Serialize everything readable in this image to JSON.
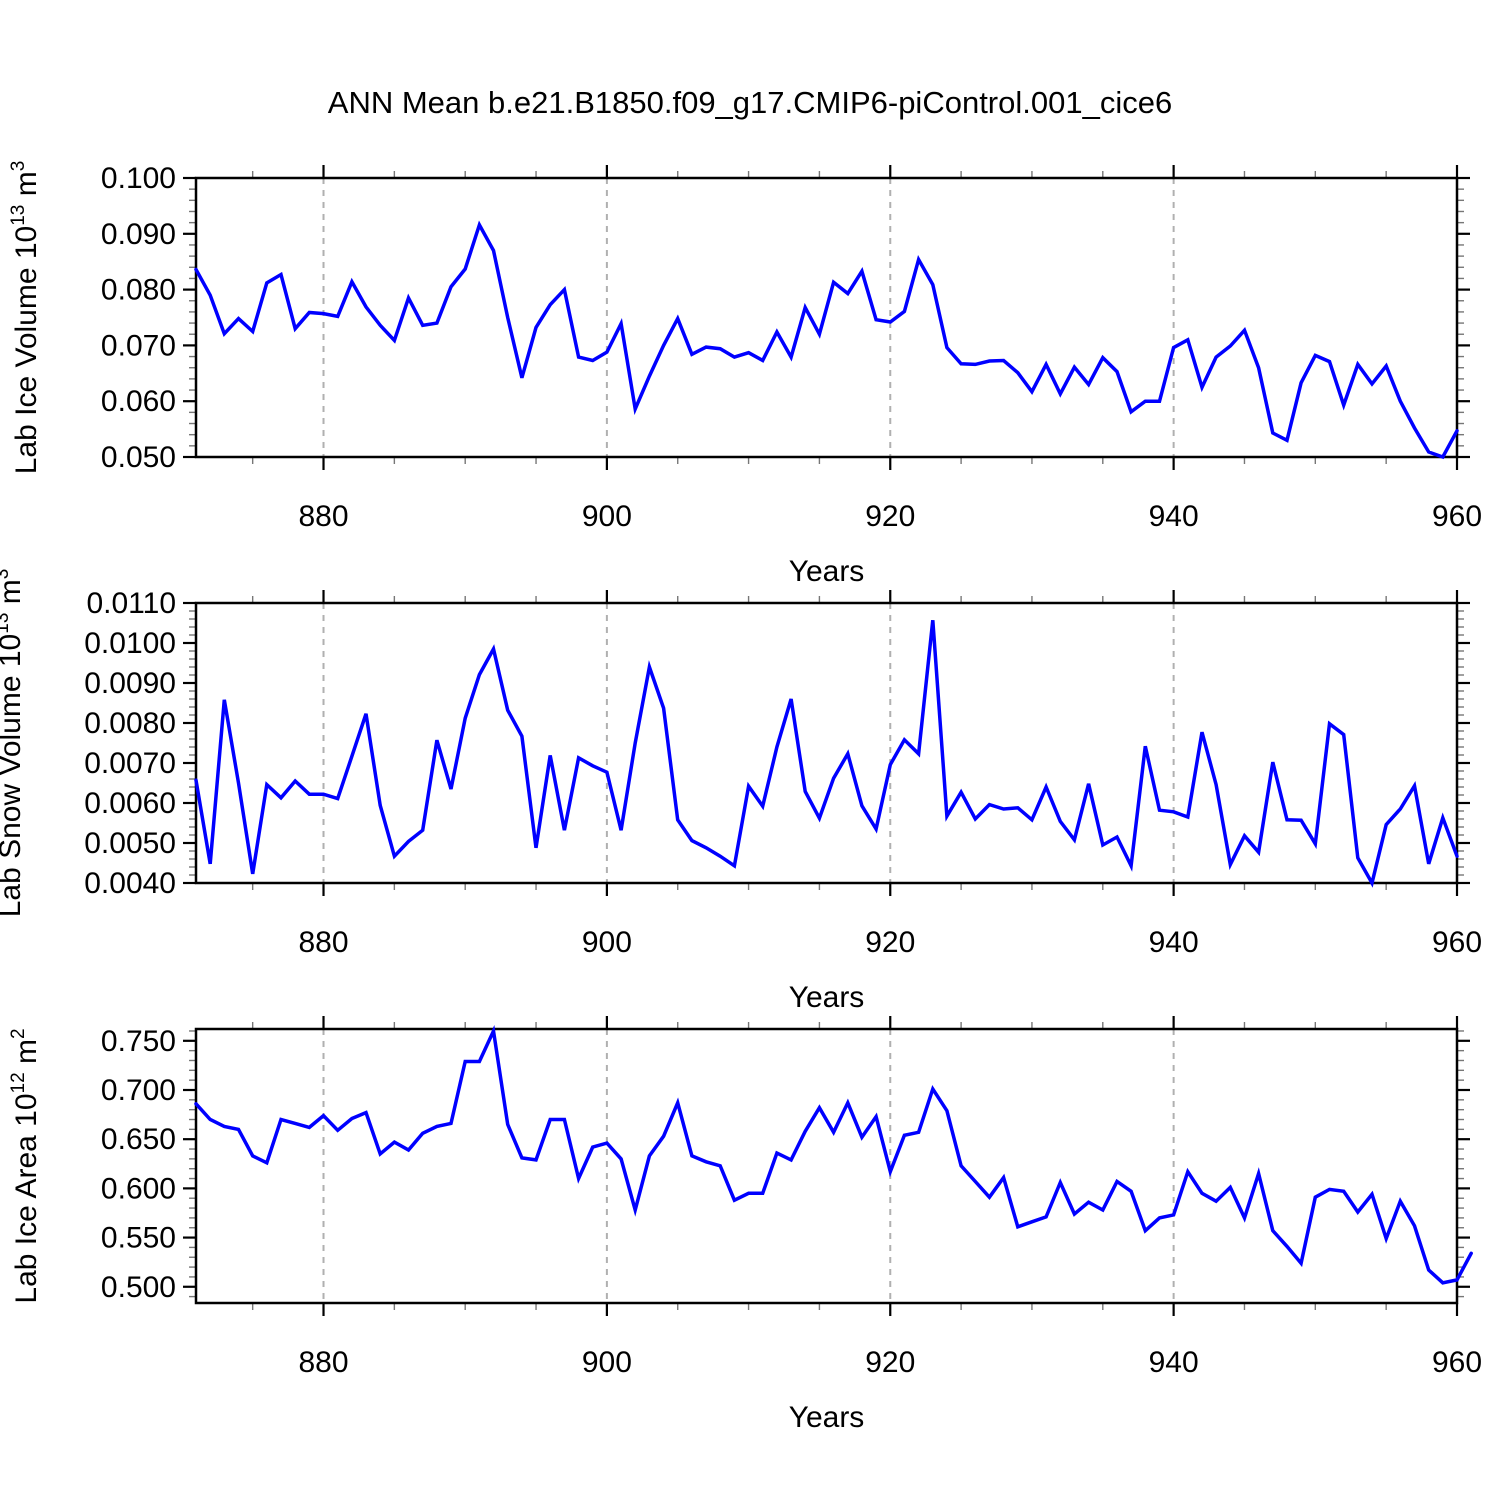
{
  "title": "ANN Mean b.e21.B1850.f09_g17.CMIP6-piControl.001_cice6",
  "colors": {
    "line": "#0000ff",
    "axis": "#000000",
    "grid": "#b0b0b0",
    "minor_tick": "#777777",
    "background": "#ffffff"
  },
  "x_axis": {
    "label": "Years",
    "range": [
      871,
      960
    ],
    "major_ticks": [
      880,
      900,
      920,
      940,
      960
    ],
    "minor_ticks": [
      875,
      885,
      890,
      895,
      905,
      910,
      915,
      925,
      930,
      935,
      945,
      950,
      955
    ],
    "gridlines": [
      880,
      900,
      920,
      940
    ]
  },
  "chart_data": [
    {
      "type": "line",
      "name": "ice-volume",
      "ylabel_segments": [
        [
          "Lab Ice Volume 10",
          0
        ],
        [
          "13",
          1
        ],
        [
          " m",
          0
        ],
        [
          "3",
          1
        ]
      ],
      "ylim": [
        0.05,
        0.1
      ],
      "ytick_start": 0.05,
      "ytick_step": 0.01,
      "ytick_count": 6,
      "yminor_step": 0.002,
      "ydecimals": 3,
      "x_start": 871,
      "values": [
        0.0836,
        0.079,
        0.0721,
        0.0748,
        0.0725,
        0.0812,
        0.0827,
        0.073,
        0.0759,
        0.0757,
        0.0752,
        0.0814,
        0.0769,
        0.0736,
        0.0709,
        0.0785,
        0.0736,
        0.074,
        0.0805,
        0.0837,
        0.0916,
        0.087,
        0.075,
        0.0642,
        0.0732,
        0.0773,
        0.08,
        0.0679,
        0.0673,
        0.0688,
        0.0739,
        0.0586,
        0.0645,
        0.07,
        0.0748,
        0.0684,
        0.0697,
        0.0694,
        0.0679,
        0.0687,
        0.0673,
        0.0724,
        0.0679,
        0.0768,
        0.072,
        0.0813,
        0.0793,
        0.0833,
        0.0746,
        0.0742,
        0.0761,
        0.0854,
        0.0809,
        0.0696,
        0.0667,
        0.0666,
        0.0672,
        0.0673,
        0.0651,
        0.0617,
        0.0666,
        0.0613,
        0.0661,
        0.063,
        0.0678,
        0.0653,
        0.0581,
        0.06,
        0.06,
        0.0696,
        0.071,
        0.0625,
        0.0679,
        0.0699,
        0.0727,
        0.066,
        0.0543,
        0.053,
        0.0633,
        0.0682,
        0.0671,
        0.0593,
        0.0666,
        0.0631,
        0.0663,
        0.06,
        0.0552,
        0.0509,
        0.05,
        0.0547
      ]
    },
    {
      "type": "line",
      "name": "snow-volume",
      "ylabel_segments": [
        [
          "Lab Snow Volume 10",
          0
        ],
        [
          "13",
          1
        ],
        [
          " m",
          0
        ],
        [
          "3",
          1
        ]
      ],
      "ylim": [
        0.004,
        0.011
      ],
      "ytick_start": 0.004,
      "ytick_step": 0.001,
      "ytick_count": 8,
      "yminor_step": 0.0002,
      "ydecimals": 4,
      "x_start": 871,
      "values": [
        0.00657,
        0.00448,
        0.00858,
        0.0065,
        0.00423,
        0.00646,
        0.00613,
        0.00655,
        0.00622,
        0.00622,
        0.00611,
        0.00717,
        0.00823,
        0.00594,
        0.00467,
        0.00504,
        0.00532,
        0.00757,
        0.00635,
        0.00812,
        0.00921,
        0.00985,
        0.00832,
        0.00767,
        0.00488,
        0.00719,
        0.00532,
        0.00713,
        0.00693,
        0.00677,
        0.00532,
        0.0075,
        0.0094,
        0.00837,
        0.00558,
        0.00506,
        0.00488,
        0.00467,
        0.00443,
        0.00642,
        0.00592,
        0.0074,
        0.0086,
        0.00629,
        0.00562,
        0.00662,
        0.00723,
        0.00593,
        0.00535,
        0.00696,
        0.00758,
        0.00723,
        0.01057,
        0.00567,
        0.00627,
        0.0056,
        0.00596,
        0.00585,
        0.00588,
        0.00558,
        0.0064,
        0.00554,
        0.00508,
        0.00648,
        0.00495,
        0.00515,
        0.00443,
        0.00742,
        0.00582,
        0.00578,
        0.00565,
        0.00777,
        0.00646,
        0.00446,
        0.00518,
        0.00477,
        0.00702,
        0.00558,
        0.00557,
        0.00498,
        0.00798,
        0.00771,
        0.00463,
        0.004,
        0.00546,
        0.00585,
        0.00643,
        0.00448,
        0.00563,
        0.00467
      ]
    },
    {
      "type": "line",
      "name": "ice-area",
      "ylabel_segments": [
        [
          "Lab Ice Area 10",
          0
        ],
        [
          "12",
          1
        ],
        [
          " m",
          0
        ],
        [
          "2",
          1
        ]
      ],
      "ylim": [
        0.4835,
        0.762
      ],
      "ytick_start": 0.5,
      "ytick_step": 0.05,
      "ytick_count": 6,
      "yminor_step": 0.01,
      "ydecimals": 3,
      "x_start": 871,
      "values": [
        0.686,
        0.67,
        0.663,
        0.66,
        0.633,
        0.626,
        0.67,
        0.666,
        0.662,
        0.674,
        0.659,
        0.671,
        0.677,
        0.635,
        0.647,
        0.639,
        0.656,
        0.663,
        0.666,
        0.729,
        0.729,
        0.76,
        0.665,
        0.631,
        0.629,
        0.67,
        0.67,
        0.61,
        0.642,
        0.646,
        0.63,
        0.578,
        0.633,
        0.653,
        0.687,
        0.633,
        0.627,
        0.623,
        0.588,
        0.595,
        0.595,
        0.636,
        0.629,
        0.658,
        0.682,
        0.657,
        0.687,
        0.652,
        0.673,
        0.617,
        0.654,
        0.657,
        0.701,
        0.679,
        0.623,
        0.607,
        0.591,
        0.611,
        0.561,
        0.566,
        0.571,
        0.606,
        0.574,
        0.586,
        0.578,
        0.607,
        0.597,
        0.557,
        0.57,
        0.573,
        0.617,
        0.595,
        0.587,
        0.601,
        0.57,
        0.615,
        0.557,
        0.541,
        0.524,
        0.591,
        0.599,
        0.597,
        0.576,
        0.594,
        0.549,
        0.587,
        0.562,
        0.517,
        0.504,
        0.507,
        0.534
      ]
    }
  ]
}
